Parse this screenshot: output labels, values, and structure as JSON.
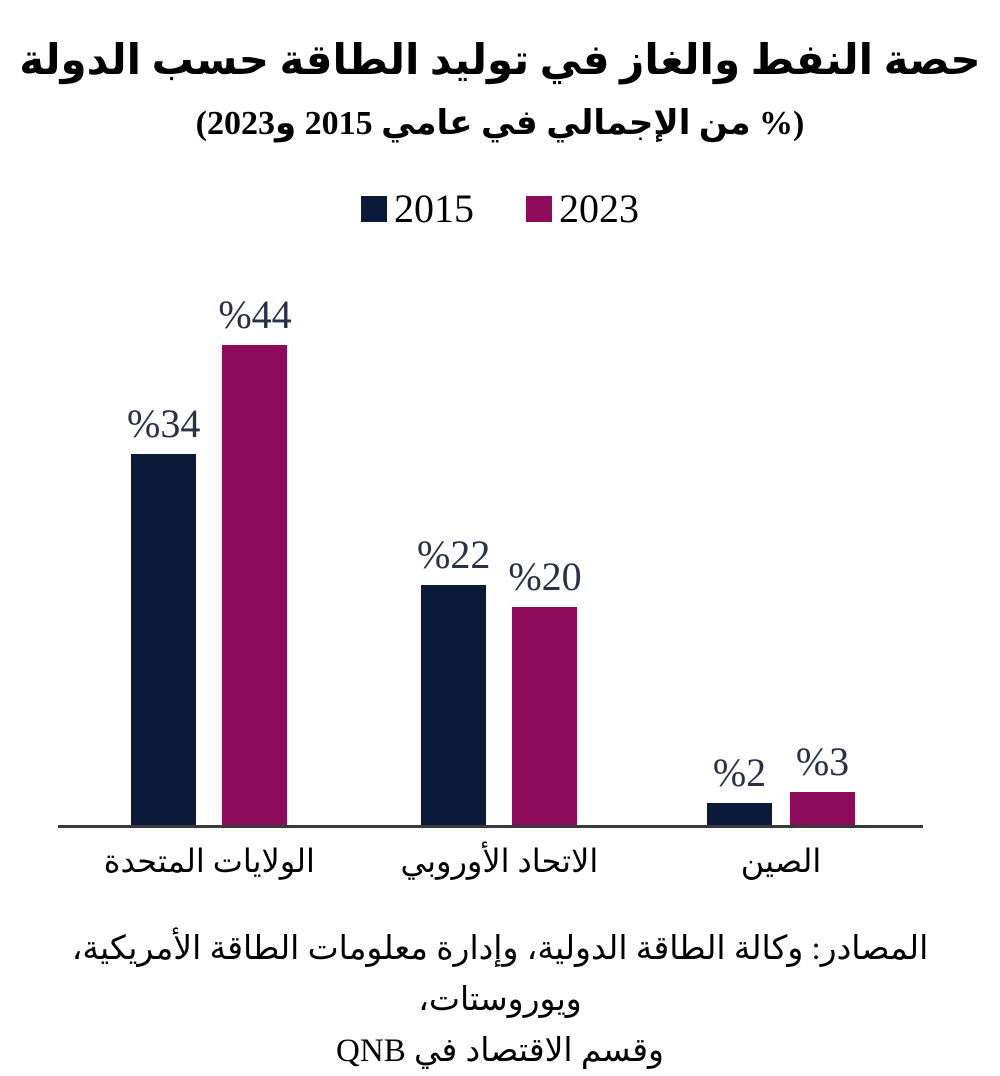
{
  "page": {
    "title": "حصة النفط والغاز في توليد الطاقة حسب الدولة",
    "subtitle": "(% من الإجمالي في عامي 2015 و2023)",
    "source_line_1": "المصادر: وكالة الطاقة الدولية، وإدارة معلومات الطاقة الأمريكية، ويوروستات،",
    "source_line_2": "وقسم الاقتصاد في QNB"
  },
  "colors": {
    "series_2015": "#0a1a38",
    "series_2023": "#8e0b5c",
    "axis": "#3a3a3a",
    "data_label": "#2a3045",
    "background": "#ffffff"
  },
  "chart_data": {
    "type": "bar",
    "title": "حصة النفط والغاز في توليد الطاقة حسب الدولة",
    "subtitle": "(% من الإجمالي في عامي 2015 و2023)",
    "categories": [
      "الولايات المتحدة",
      "الاتحاد الأوروبي",
      "الصين"
    ],
    "series": [
      {
        "name": "2015",
        "color": "#0a1a38",
        "values": [
          34,
          22,
          2
        ],
        "data_labels": [
          "%34",
          "%22",
          "%2"
        ]
      },
      {
        "name": "2023",
        "color": "#8e0b5c",
        "values": [
          44,
          20,
          3
        ],
        "data_labels": [
          "%44",
          "%20",
          "%3"
        ]
      }
    ],
    "unit": "percent of total",
    "ylim": [
      0,
      50
    ],
    "grid": false,
    "y_axis_visible": false,
    "legend_position": "top-center",
    "direction": "rtl"
  }
}
